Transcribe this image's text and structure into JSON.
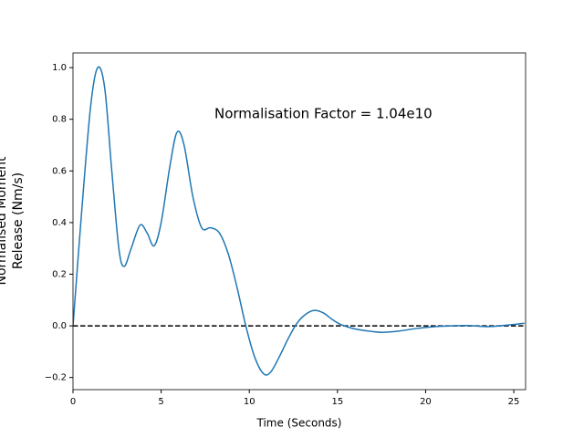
{
  "chart_data": {
    "type": "line",
    "annotation": "Normalisation Factor = 1.04e10",
    "xlabel": "Time (Seconds)",
    "ylabel": [
      "Normalised Moment",
      "Release (Nm/s)"
    ],
    "x": [
      0,
      0.5,
      1,
      1.4,
      1.8,
      2.2,
      2.6,
      2.9,
      3.3,
      3.8,
      4.2,
      4.6,
      5.0,
      5.5,
      5.9,
      6.3,
      6.8,
      7.3,
      7.8,
      8.3,
      8.8,
      9.3,
      9.8,
      10.3,
      10.8,
      11.2,
      11.7,
      12.2,
      12.7,
      13.2,
      13.7,
      14.2,
      14.7,
      15.2,
      16,
      17,
      17.6,
      18.5,
      19.5,
      20.5,
      21.5,
      22.5,
      23.5,
      24.5,
      25.6
    ],
    "series": [
      {
        "color": "#1f77b4",
        "values": [
          0,
          0.45,
          0.85,
          1.0,
          0.92,
          0.6,
          0.3,
          0.23,
          0.3,
          0.39,
          0.36,
          0.31,
          0.4,
          0.62,
          0.75,
          0.7,
          0.5,
          0.38,
          0.38,
          0.36,
          0.28,
          0.15,
          0.0,
          -0.12,
          -0.185,
          -0.18,
          -0.12,
          -0.05,
          0.01,
          0.045,
          0.06,
          0.05,
          0.025,
          0.005,
          -0.012,
          -0.022,
          -0.025,
          -0.02,
          -0.01,
          -0.003,
          0,
          0.001,
          -0.003,
          0.002,
          0.01
        ]
      }
    ],
    "reference_line": {
      "value": 0,
      "color": "#000000"
    },
    "xlim": [
      0,
      25.67
    ],
    "ylim": [
      -0.247,
      1.057
    ],
    "xticks": [
      0,
      5,
      10,
      15,
      20,
      25
    ],
    "yticks": [
      {
        "value": -0.2,
        "label": "−0.2"
      },
      {
        "value": 0,
        "label": "0.0"
      },
      0.2,
      0.4,
      0.6,
      0.8,
      {
        "value": 1,
        "label": "1.0"
      }
    ]
  }
}
